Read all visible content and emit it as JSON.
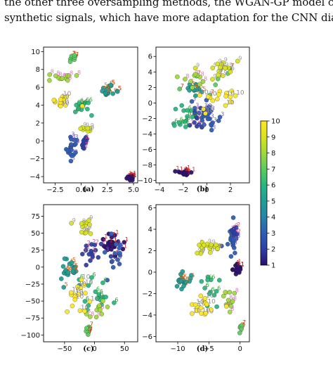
{
  "text": {
    "line1": "the other three oversampling methods, the WGAN-GP model ca",
    "line2": "synthetic signals, which have more adaptation for the CNN diag"
  },
  "chart_data": [
    {
      "type": "scatter",
      "caption": "(a)",
      "xlim": [
        -3.6,
        5.4
      ],
      "ylim": [
        -4.7,
        10.5
      ],
      "xticks": [
        -2.5,
        0.0,
        2.5,
        5.0
      ],
      "xtick_labels": [
        "−2.5",
        "0.0",
        "2.5",
        "5.0"
      ],
      "yticks": [
        -4,
        -2,
        0,
        2,
        4,
        6,
        8,
        10
      ],
      "ytick_labels": [
        "−4",
        "−2",
        "0",
        "2",
        "4",
        "6",
        "8",
        "10"
      ],
      "clusters": [
        {
          "label": 1,
          "cx": 4.7,
          "cy": -4.1,
          "sx": 0.3,
          "sy": 0.3,
          "n": 20
        },
        {
          "label": 3,
          "cx": -0.9,
          "cy": -0.8,
          "sx": 0.6,
          "sy": 1.1,
          "n": 20
        },
        {
          "label": 2,
          "cx": 0.2,
          "cy": -0.1,
          "sx": 0.3,
          "sy": 0.6,
          "n": 10
        },
        {
          "label": 5,
          "cx": 2.6,
          "cy": 5.5,
          "sx": 0.6,
          "sy": 0.7,
          "n": 18
        },
        {
          "label": 6,
          "cx": 0.0,
          "cy": 3.7,
          "sx": 0.9,
          "sy": 0.7,
          "n": 12
        },
        {
          "label": 7,
          "cx": -0.8,
          "cy": 9.4,
          "sx": 0.5,
          "sy": 0.4,
          "n": 8
        },
        {
          "label": 8,
          "cx": -2.0,
          "cy": 7.0,
          "sx": 1.2,
          "sy": 0.3,
          "n": 12
        },
        {
          "label": 9,
          "cx": 0.5,
          "cy": 1.3,
          "sx": 0.6,
          "sy": 0.4,
          "n": 8
        },
        {
          "label": 10,
          "cx": -1.8,
          "cy": 4.5,
          "sx": 1.2,
          "sy": 1.0,
          "n": 14
        }
      ]
    },
    {
      "type": "scatter",
      "caption": "(b)",
      "xlim": [
        -4.3,
        3.6
      ],
      "ylim": [
        -10.3,
        7.2
      ],
      "xticks": [
        -4,
        -2,
        0,
        2
      ],
      "xtick_labels": [
        "−4",
        "−2",
        "0",
        "2"
      ],
      "yticks": [
        -10,
        -8,
        -6,
        -4,
        -2,
        0,
        2,
        4,
        6
      ],
      "ytick_labels": [
        "−10",
        "−8",
        "−6",
        "−4",
        "−2",
        "0",
        "2",
        "4",
        "6"
      ],
      "clusters": [
        {
          "label": 1,
          "cx": -1.9,
          "cy": -9.0,
          "sx": 0.4,
          "sy": 0.3,
          "n": 22
        },
        {
          "label": 3,
          "cx": 0.0,
          "cy": -1.5,
          "sx": 0.9,
          "sy": 1.5,
          "n": 26
        },
        {
          "label": 2,
          "cx": -0.8,
          "cy": -2.5,
          "sx": 0.5,
          "sy": 1.2,
          "n": 10
        },
        {
          "label": 5,
          "cx": -1.0,
          "cy": 2.0,
          "sx": 0.6,
          "sy": 0.8,
          "n": 14
        },
        {
          "label": 6,
          "cx": -2.0,
          "cy": -2.0,
          "sx": 1.2,
          "sy": 2.0,
          "n": 14
        },
        {
          "label": 7,
          "cx": 0.5,
          "cy": 3.5,
          "sx": 1.5,
          "sy": 2.0,
          "n": 8
        },
        {
          "label": 8,
          "cx": -1.2,
          "cy": 3.0,
          "sx": 1.2,
          "sy": 1.5,
          "n": 10
        },
        {
          "label": 9,
          "cx": 0.8,
          "cy": 4.5,
          "sx": 1.5,
          "sy": 1.0,
          "n": 16
        },
        {
          "label": 10,
          "cx": 0.5,
          "cy": 0.5,
          "sx": 1.5,
          "sy": 2.0,
          "n": 16
        }
      ]
    },
    {
      "type": "scatter",
      "caption": "(c)",
      "xlim": [
        -85,
        72
      ],
      "ylim": [
        -110,
        92
      ],
      "xticks": [
        -50,
        0,
        50
      ],
      "xtick_labels": [
        "−50",
        "0",
        "50"
      ],
      "yticks": [
        -100,
        -75,
        -50,
        -25,
        0,
        25,
        50,
        75
      ],
      "ytick_labels": [
        "−100",
        "−75",
        "−50",
        "−25",
        "0",
        "25",
        "50",
        "75"
      ],
      "clusters": [
        {
          "label": 1,
          "cx": 28,
          "cy": 30,
          "sx": 20,
          "sy": 18,
          "n": 26
        },
        {
          "label": 2,
          "cx": -5,
          "cy": 20,
          "sx": 18,
          "sy": 20,
          "n": 16
        },
        {
          "label": 3,
          "cx": 30,
          "cy": 20,
          "sx": 15,
          "sy": 25,
          "n": 14
        },
        {
          "label": 5,
          "cx": -45,
          "cy": -5,
          "sx": 20,
          "sy": 15,
          "n": 22
        },
        {
          "label": 6,
          "cx": 0,
          "cy": -40,
          "sx": 25,
          "sy": 30,
          "n": 16
        },
        {
          "label": 7,
          "cx": -12,
          "cy": -92,
          "sx": 4,
          "sy": 6,
          "n": 6
        },
        {
          "label": 8,
          "cx": 10,
          "cy": -65,
          "sx": 20,
          "sy": 15,
          "n": 10
        },
        {
          "label": 9,
          "cx": -15,
          "cy": 58,
          "sx": 15,
          "sy": 12,
          "n": 14
        },
        {
          "label": 10,
          "cx": -30,
          "cy": -45,
          "sx": 25,
          "sy": 20,
          "n": 16
        }
      ]
    },
    {
      "type": "scatter",
      "caption": "(d)",
      "xlim": [
        -13.5,
        1.5
      ],
      "ylim": [
        -6.5,
        6.3
      ],
      "xticks": [
        -10,
        -5,
        0
      ],
      "xtick_labels": [
        "−10",
        "−5",
        "0"
      ],
      "yticks": [
        -6,
        -4,
        -2,
        0,
        2,
        4,
        6
      ],
      "ytick_labels": [
        "−6",
        "−4",
        "−2",
        "0",
        "2",
        "4",
        "6"
      ],
      "clusters": [
        {
          "label": 1,
          "cx": -0.5,
          "cy": 0.4,
          "sx": 0.6,
          "sy": 0.5,
          "n": 20
        },
        {
          "label": 3,
          "cx": -1.2,
          "cy": 3.0,
          "sx": 0.8,
          "sy": 1.2,
          "n": 24
        },
        {
          "label": 2,
          "cx": -1.0,
          "cy": 4.0,
          "sx": 0.5,
          "sy": 0.8,
          "n": 8
        },
        {
          "label": 5,
          "cx": -9.5,
          "cy": -0.8,
          "sx": 1.2,
          "sy": 0.8,
          "n": 20
        },
        {
          "label": 6,
          "cx": -5.0,
          "cy": -1.5,
          "sx": 2.0,
          "sy": 1.5,
          "n": 12
        },
        {
          "label": 7,
          "cx": 0.0,
          "cy": -5.3,
          "sx": 0.4,
          "sy": 0.4,
          "n": 5
        },
        {
          "label": 8,
          "cx": -2.0,
          "cy": -3.0,
          "sx": 1.2,
          "sy": 1.2,
          "n": 12
        },
        {
          "label": 9,
          "cx": -5.0,
          "cy": 2.2,
          "sx": 2.0,
          "sy": 0.8,
          "n": 18
        },
        {
          "label": 10,
          "cx": -6.0,
          "cy": -3.0,
          "sx": 2.5,
          "sy": 1.2,
          "n": 16
        }
      ]
    }
  ],
  "colorbar": {
    "min": 1,
    "max": 10,
    "ticks": [
      1,
      2,
      3,
      4,
      5,
      6,
      7,
      8,
      9,
      10
    ],
    "colormap": "plasma-blue-to-yellow",
    "stops": [
      "#2c0f6e",
      "#2d3ea6",
      "#2e5cb4",
      "#2685a8",
      "#1f9e96",
      "#28b77f",
      "#5ccb5e",
      "#a0d93a",
      "#d8e31f",
      "#fde725"
    ]
  },
  "label_colors": {
    "1": "#cc2222",
    "2": "#cc4488",
    "3": "#7b5cd0",
    "5": "#d2691e",
    "6": "#2ca02c",
    "7": "#cc3300",
    "8": "#e377c2",
    "9": "#9a9a9a",
    "10": "#8c8c8c"
  }
}
